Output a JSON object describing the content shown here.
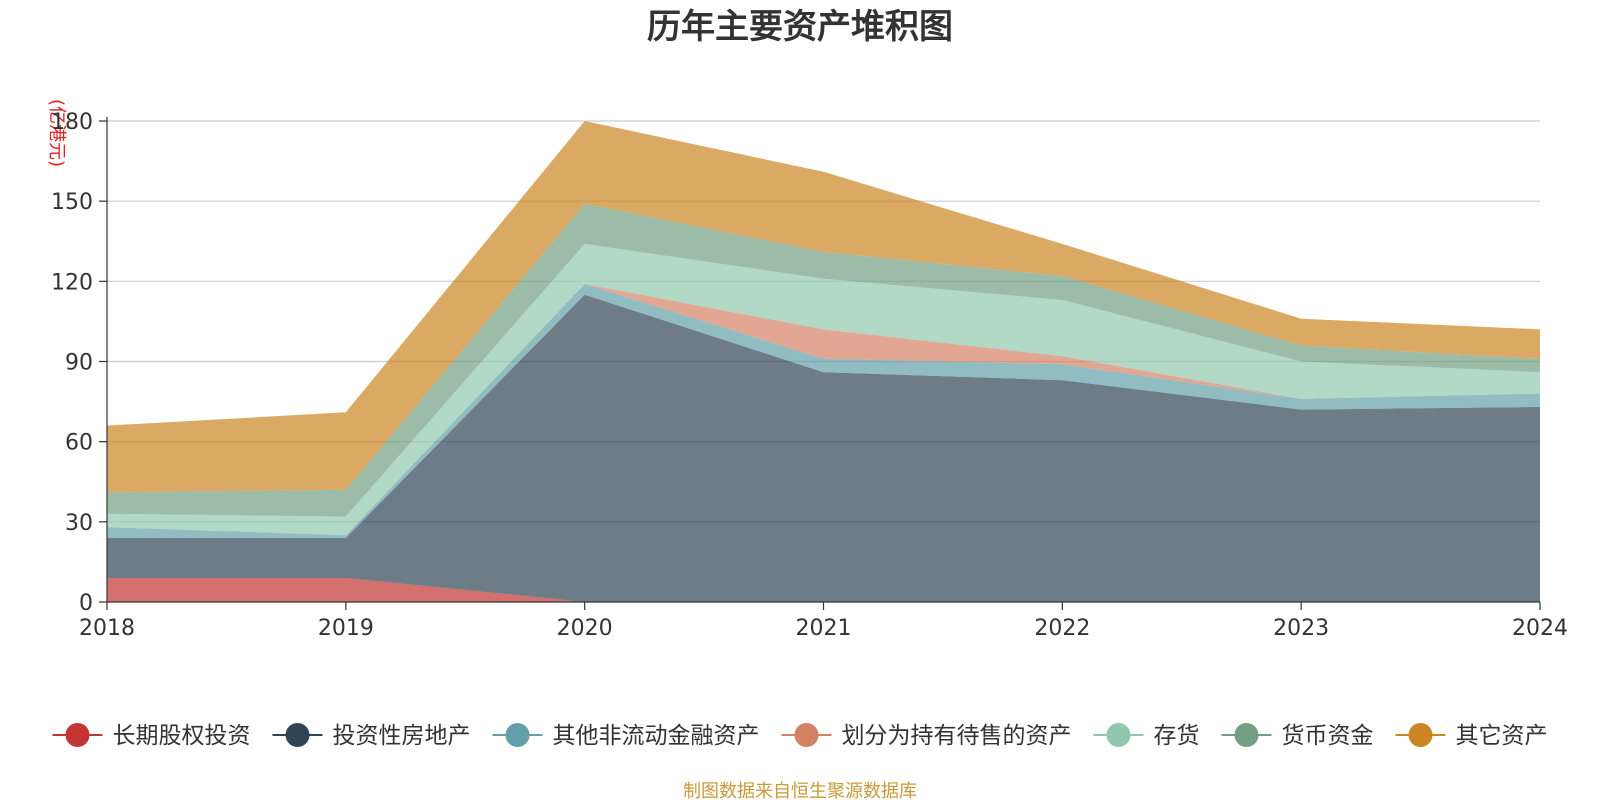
{
  "chart_data": {
    "type": "area",
    "stacked": true,
    "title": "历年主要资产堆积图",
    "unit_label": "(亿港元)",
    "x": [
      "2018",
      "2019",
      "2020",
      "2021",
      "2022",
      "2023",
      "2024"
    ],
    "ylim": [
      0,
      180
    ],
    "yticks": [
      "0",
      "30",
      "60",
      "90",
      "120",
      "150",
      "180"
    ],
    "grid": true,
    "legend_position": "bottom",
    "series": [
      {
        "name": "长期股权投资",
        "color": "#c23531",
        "values": [
          9,
          9,
          0,
          0,
          0,
          0,
          0
        ]
      },
      {
        "name": "投资性房地产",
        "color": "#2f4554",
        "values": [
          15,
          15,
          115,
          86,
          83,
          72,
          73
        ]
      },
      {
        "name": "其他非流动金融资产",
        "color": "#61a0a8",
        "values": [
          4,
          1,
          4,
          5,
          6,
          4,
          5
        ]
      },
      {
        "name": "划分为持有待售的资产",
        "color": "#d48265",
        "values": [
          0,
          0,
          0,
          11,
          3,
          0,
          0
        ]
      },
      {
        "name": "存货",
        "color": "#91c7ae",
        "values": [
          5,
          7,
          15,
          19,
          21,
          14,
          8
        ]
      },
      {
        "name": "货币资金",
        "color": "#749f83",
        "values": [
          8,
          10,
          15,
          10,
          9,
          6,
          5
        ]
      },
      {
        "name": "其它资产",
        "color": "#ca8622",
        "values": [
          25,
          29,
          31,
          30,
          12,
          10,
          11
        ]
      }
    ],
    "source_note": "制图数据来自恒生聚源数据库"
  }
}
